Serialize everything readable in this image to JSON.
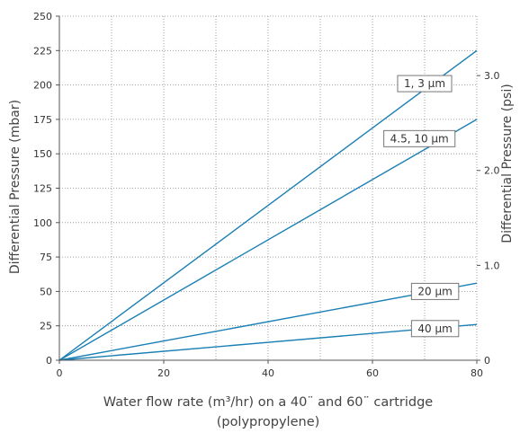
{
  "chart_data": {
    "type": "line",
    "x": [
      0,
      80
    ],
    "series": [
      {
        "name": "1, 3 µm",
        "values": [
          0,
          225
        ]
      },
      {
        "name": "4.5, 10 µm",
        "values": [
          0,
          175
        ]
      },
      {
        "name": "20 µm",
        "values": [
          0,
          56
        ]
      },
      {
        "name": "40 µm",
        "values": [
          0,
          26
        ]
      }
    ],
    "xlim": [
      0,
      80
    ],
    "ylim": [
      0,
      250
    ],
    "y2lim_psi": [
      0,
      3.626
    ],
    "x_ticks": [
      "0",
      "20",
      "40",
      "60",
      "80"
    ],
    "y_ticks": [
      "0",
      "25",
      "50",
      "75",
      "100",
      "125",
      "150",
      "175",
      "200",
      "225",
      "250"
    ],
    "y2_ticks": [
      {
        "value": 0,
        "label": "0"
      },
      {
        "value": 1.0,
        "label": "1.0"
      },
      {
        "value": 2.0,
        "label": "2.0"
      },
      {
        "value": 3.0,
        "label": "3.0"
      }
    ],
    "xlabel_line1": "Water flow rate (m³/hr) on a 40¨ and 60¨ cartridge",
    "xlabel_line2": "(polypropylene)",
    "ylabel": "Differential Pressure (mbar)",
    "y2label": "Differential Pressure (psi)",
    "grid": true,
    "grid_style": "dotted",
    "line_color": "#1a7fb5",
    "series_label_positions": [
      {
        "x": 70,
        "y": 201
      },
      {
        "x": 69,
        "y": 161
      },
      {
        "x": 72,
        "y": 50
      },
      {
        "x": 72,
        "y": 23
      }
    ]
  }
}
